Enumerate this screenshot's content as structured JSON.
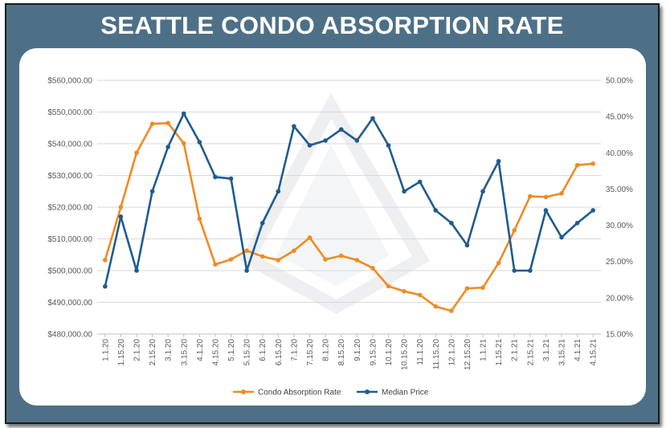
{
  "title": "SEATTLE CONDO ABSORPTION RATE",
  "colors": {
    "frame": "#4e7087",
    "absorption": "#ef8b23",
    "price": "#1f5b8f",
    "grid": "#d9d9d9"
  },
  "chart_data": {
    "type": "line",
    "categories": [
      "1.1.20",
      "1.15.20",
      "2.1.20",
      "2.15.20",
      "3.1.20",
      "3.15.20",
      "4.1.20",
      "4.15.20",
      "5.1.20",
      "5.15.20",
      "6.1.20",
      "6.15.20",
      "7.1.20",
      "7.15.20",
      "8.1.20",
      "8.15.20",
      "9.1.20",
      "9.15.20",
      "10.1.20",
      "10.15.20",
      "11.1.20",
      "11.15.20",
      "12.1.20",
      "12.15.20",
      "1.1.21",
      "1.15.21",
      "2.1.21",
      "2.15.21",
      "3.1.21",
      "3.15.21",
      "4.1.21",
      "4.15.21"
    ],
    "y_left": {
      "ylim": [
        480000,
        560000
      ],
      "ticks": [
        "$480,000.00",
        "$490,000.00",
        "$500,000.00",
        "$510,000.00",
        "$520,000.00",
        "$530,000.00",
        "$540,000.00",
        "$550,000.00",
        "$560,000.00"
      ]
    },
    "y_right": {
      "ylim": [
        15,
        50
      ],
      "ticks": [
        "15.00%",
        "20.00%",
        "25.00%",
        "30.00%",
        "35.00%",
        "40.00%",
        "45.00%",
        "50.00%"
      ]
    },
    "grid": true,
    "legend_position": "bottom",
    "series": [
      {
        "name": "Condo Absorption Rate",
        "axis": "right",
        "color": "#ef8b23",
        "values": [
          25.2,
          32.5,
          40.0,
          44.0,
          44.1,
          41.3,
          30.9,
          24.6,
          25.3,
          26.5,
          25.7,
          25.2,
          26.5,
          28.3,
          25.3,
          25.8,
          25.2,
          24.1,
          21.6,
          20.9,
          20.4,
          18.8,
          18.2,
          21.3,
          21.4,
          24.8,
          29.3,
          34.0,
          33.9,
          34.4,
          38.3,
          38.5
        ]
      },
      {
        "name": "Median Price",
        "axis": "left",
        "color": "#1f5b8f",
        "values": [
          495000,
          517000,
          500000,
          525000,
          539000,
          549500,
          540500,
          529500,
          529000,
          500000,
          515000,
          525000,
          545500,
          539500,
          541000,
          544500,
          541000,
          548000,
          539500,
          525000,
          528000,
          519000,
          515000,
          508000,
          525000,
          534500,
          500000,
          500000,
          519000,
          510500,
          515000,
          519000
        ]
      }
    ]
  }
}
